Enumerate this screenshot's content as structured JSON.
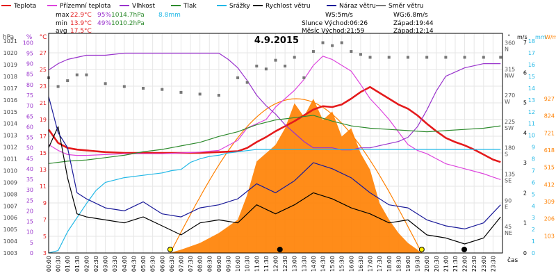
{
  "title": "4.9.2015",
  "legend": [
    {
      "label": "Teplota",
      "color": "#e41a1c"
    },
    {
      "label": "Přízemní teplota",
      "color": "#dd44dd"
    },
    {
      "label": "Vlhkost",
      "color": "#9933cc"
    },
    {
      "label": "Tlak",
      "color": "#2e8b2e"
    },
    {
      "label": "Srážky",
      "color": "#22b8e6"
    },
    {
      "label": "Rychlost větru",
      "color": "#000000"
    },
    {
      "label": "Náraz větru",
      "color": "#1a1a99"
    },
    {
      "label": "Směr větru",
      "color": "#777777"
    }
  ],
  "stats": {
    "max": {
      "label": "max",
      "temp": "22.9°C",
      "hum": "95%",
      "press": "1014.7hPa",
      "rain": "8.8mm"
    },
    "min": {
      "label": "min",
      "temp": "13.9°C",
      "hum": "49%",
      "press": "1010.2hPa"
    },
    "avg": {
      "label": "avg",
      "temp": "17.5°C"
    },
    "ws": "WS:5m/s",
    "wg": "WG:6.8m/s",
    "sun": "Slunce Východ:06:26",
    "sun_set": "Západ:19:44",
    "moon": "Měsíc  Východ:21:59",
    "moon_set": "Západ:12:14"
  },
  "axes": {
    "hpa": {
      "title": "hPa",
      "color": "#444444",
      "ticks": [
        "1021",
        "1020",
        "1019",
        "1018",
        "1017",
        "1016",
        "1015",
        "1014",
        "1013",
        "1012",
        "1011",
        "1010",
        "1009",
        "1008",
        "1007",
        "1006",
        "1005",
        "1004",
        "1003"
      ]
    },
    "pct": {
      "title": "%",
      "color": "#9933cc",
      "ticks": [
        "100",
        "95",
        "90",
        "85",
        "80",
        "75",
        "70",
        "65",
        "60",
        "55",
        "50",
        "45",
        "40",
        "35",
        "30",
        "25",
        "20",
        "15",
        "10",
        "5",
        "0"
      ]
    },
    "degc": {
      "title": "°C",
      "color": "#e41a1c",
      "ticks": [
        "27",
        "25",
        "23",
        "21",
        "19",
        "17",
        "15",
        "13",
        "11",
        "9",
        "7",
        "5",
        "3"
      ]
    },
    "dir": {
      "title": "°",
      "color": "#555555",
      "ticks": [
        {
          "v": "360",
          "l": "N"
        },
        {
          "v": "315",
          "l": "NW"
        },
        {
          "v": "270",
          "l": "W"
        },
        {
          "v": "225",
          "l": "SW"
        },
        {
          "v": "180",
          "l": "S"
        },
        {
          "v": "135",
          "l": "SE"
        },
        {
          "v": "90",
          "l": "E"
        },
        {
          "v": "45",
          "l": "NE"
        }
      ]
    },
    "ms": {
      "title": "m/s",
      "color": "#000000",
      "ticks": [
        "7",
        "6",
        "5",
        "4",
        "3",
        "2",
        "1",
        "0"
      ]
    },
    "mm": {
      "title": "mm",
      "color": "#22b8e6",
      "ticks": [
        "18",
        "17",
        "16",
        "15",
        "14",
        "13",
        "12",
        "11",
        "10",
        "9",
        "8",
        "7",
        "6",
        "5",
        "4",
        "3",
        "2",
        "1",
        "0"
      ]
    },
    "wm2": {
      "title": "W/m2",
      "color": "#ff8000",
      "ticks": [
        "927",
        "824",
        "721",
        "618",
        "515",
        "412",
        "309",
        "206",
        "103"
      ]
    },
    "x_ticks": [
      "00:00",
      "00:30",
      "01:00",
      "01:30",
      "02:00",
      "02:30",
      "03:00",
      "03:30",
      "04:00",
      "04:30",
      "05:00",
      "05:30",
      "06:00",
      "06:30",
      "07:00",
      "07:30",
      "08:00",
      "08:30",
      "09:00",
      "09:30",
      "10:00",
      "10:30",
      "11:00",
      "11:30",
      "12:00",
      "12:30",
      "13:00",
      "13:30",
      "14:00",
      "14:30",
      "15:00",
      "15:30",
      "16:00",
      "16:30",
      "17:00",
      "17:30",
      "18:00",
      "18:30",
      "19:00",
      "19:30",
      "20:00",
      "20:30",
      "21:00",
      "21:30",
      "22:00",
      "22:30",
      "23:00",
      "23:30"
    ],
    "x_label": "čas"
  },
  "chart_data": {
    "type": "line",
    "title": "4.9.2015",
    "x_unit": "hour",
    "series": [
      {
        "name": "Teplota",
        "color": "#e41a1c",
        "unit": "°C",
        "x": [
          0,
          0.5,
          1,
          1.5,
          2,
          3,
          4,
          5,
          6,
          7,
          8,
          9,
          10,
          10.5,
          11,
          11.5,
          12,
          12.5,
          13,
          13.5,
          14,
          14.5,
          15,
          15.5,
          16,
          16.5,
          17,
          17.5,
          18,
          18.5,
          19,
          19.5,
          20,
          20.5,
          21,
          21.5,
          22,
          22.5,
          23,
          23.5,
          23.9
        ],
        "y": [
          17.8,
          16.2,
          15.6,
          15.4,
          15.3,
          15.1,
          15.0,
          15.0,
          15.0,
          15.0,
          15.0,
          15.1,
          15.2,
          15.6,
          16.3,
          16.9,
          17.6,
          18.2,
          18.8,
          19.5,
          20.2,
          20.6,
          20.5,
          20.8,
          21.5,
          22.3,
          22.9,
          22.2,
          21.5,
          20.8,
          20.3,
          19.5,
          18.5,
          17.6,
          16.8,
          16.3,
          15.9,
          15.4,
          14.8,
          14.2,
          13.9
        ]
      },
      {
        "name": "Přízemní teplota",
        "color": "#dd44dd",
        "unit": "°C",
        "x": [
          0,
          0.5,
          1,
          1.5,
          2,
          3,
          4,
          5,
          6,
          7,
          8,
          9,
          10,
          10.5,
          11,
          11.5,
          12,
          12.5,
          13,
          13.5,
          14,
          14.5,
          15,
          15.5,
          16,
          16.5,
          17,
          17.5,
          18,
          18.5,
          19,
          19.5,
          20,
          20.5,
          21,
          22,
          23,
          23.5,
          23.9
        ],
        "y": [
          16.0,
          15.3,
          14.8,
          14.7,
          14.7,
          14.8,
          14.9,
          14.9,
          14.9,
          15.0,
          15.1,
          15.3,
          16.5,
          18.0,
          18.5,
          19.0,
          20.5,
          21.5,
          22.5,
          23.8,
          25.5,
          26.6,
          26.2,
          25.5,
          24.8,
          23.2,
          21.5,
          20.3,
          19.0,
          17.5,
          16.0,
          15.3,
          14.9,
          14.3,
          13.7,
          13.1,
          12.5,
          12.1,
          11.8
        ]
      },
      {
        "name": "Vlhkost",
        "color": "#9933cc",
        "unit": "%",
        "x": [
          0,
          0.5,
          1,
          1.5,
          2,
          3,
          4,
          5,
          6,
          7,
          8,
          9,
          9.5,
          10,
          10.5,
          11,
          11.5,
          12,
          12.5,
          13,
          13.5,
          14,
          14.5,
          15,
          15.5,
          16,
          16.5,
          17,
          17.5,
          18,
          18.5,
          19,
          19.5,
          20,
          20.5,
          21,
          22,
          23,
          23.9
        ],
        "y": [
          87,
          90,
          92,
          93,
          94,
          94,
          95,
          95,
          95,
          95,
          95,
          95,
          92,
          88,
          82,
          75,
          70,
          66,
          61,
          57,
          53,
          50,
          50,
          50,
          49,
          49,
          50,
          50,
          51,
          52,
          53,
          55,
          60,
          68,
          77,
          84,
          88,
          90,
          90
        ]
      },
      {
        "name": "Tlak",
        "color": "#2e8b2e",
        "unit": "hPa",
        "x": [
          0,
          1,
          2,
          3,
          4,
          5,
          6,
          7,
          8,
          9,
          10,
          11,
          12,
          13,
          14,
          15,
          16,
          17,
          18,
          19,
          20,
          21,
          22,
          23,
          23.9
        ],
        "y": [
          1010.6,
          1010.8,
          1010.9,
          1011.1,
          1011.3,
          1011.6,
          1011.8,
          1012.1,
          1012.4,
          1012.9,
          1013.3,
          1013.9,
          1014.3,
          1014.5,
          1014.7,
          1014.2,
          1013.8,
          1013.6,
          1013.5,
          1013.4,
          1013.3,
          1013.4,
          1013.5,
          1013.6,
          1013.8
        ]
      },
      {
        "name": "Srážky",
        "color": "#22b8e6",
        "unit": "mm",
        "x": [
          0,
          0.5,
          1,
          1.5,
          2,
          2.5,
          3,
          4,
          5,
          6,
          6.5,
          7,
          7.5,
          8,
          8.5,
          9,
          9.5,
          10,
          10.5,
          11,
          11.5,
          12,
          23.9
        ],
        "y": [
          0,
          0.2,
          1.8,
          3.0,
          4.2,
          5.3,
          6.0,
          6.4,
          6.6,
          6.8,
          7.0,
          7.1,
          7.7,
          8.0,
          8.2,
          8.3,
          8.5,
          8.6,
          8.7,
          8.8,
          8.8,
          8.8,
          8.8
        ]
      },
      {
        "name": "Rychlost větru",
        "color": "#000000",
        "unit": "m/s",
        "x": [
          0,
          0.5,
          1,
          1.5,
          2,
          3,
          4,
          5,
          6,
          7,
          8,
          9,
          10,
          11,
          12,
          13,
          14,
          15,
          16,
          17,
          18,
          19,
          20,
          21,
          22,
          23,
          23.9
        ],
        "y": [
          3.5,
          4.2,
          2.5,
          1.3,
          1.2,
          1.1,
          1.0,
          1.2,
          0.9,
          0.6,
          1.0,
          1.1,
          1.0,
          1.6,
          1.3,
          1.6,
          2.0,
          1.8,
          1.5,
          1.3,
          1.0,
          1.1,
          0.6,
          0.5,
          0.3,
          0.5,
          1.2
        ]
      },
      {
        "name": "Náraz větru",
        "color": "#1a1a99",
        "unit": "m/s",
        "x": [
          0,
          0.5,
          1,
          1.5,
          2,
          3,
          4,
          5,
          6,
          7,
          8,
          9,
          10,
          11,
          12,
          13,
          14,
          15,
          16,
          17,
          18,
          19,
          20,
          21,
          22,
          23,
          23.9
        ],
        "y": [
          5.2,
          4.0,
          3.5,
          2.0,
          1.8,
          1.5,
          1.4,
          1.7,
          1.3,
          1.2,
          1.5,
          1.6,
          1.8,
          2.3,
          2.0,
          2.4,
          3.0,
          2.8,
          2.5,
          2.0,
          1.6,
          1.5,
          1.1,
          0.9,
          0.8,
          1.0,
          1.6
        ]
      },
      {
        "name": "Směr větru",
        "color": "#777777",
        "unit": "°",
        "x": [
          0,
          0.5,
          1,
          1.5,
          2,
          3,
          4,
          5,
          6,
          7,
          8,
          9,
          10,
          10.5,
          11,
          11.5,
          12,
          12.5,
          13,
          13.5,
          14,
          14.5,
          15,
          15.5,
          16,
          16.5,
          17,
          18,
          19,
          20,
          21,
          22,
          23,
          23.9
        ],
        "y": [
          300,
          285,
          295,
          305,
          305,
          290,
          285,
          282,
          280,
          275,
          272,
          270,
          300,
          292,
          320,
          315,
          330,
          320,
          335,
          300,
          345,
          360,
          355,
          360,
          345,
          340,
          335,
          335,
          335,
          335,
          335,
          335,
          335,
          335
        ]
      }
    ],
    "solar_radiation": {
      "name": "Sluneční záření",
      "color": "#ff8000",
      "unit": "W/m2",
      "x": [
        6.4,
        7,
        8,
        9,
        10,
        10.5,
        11,
        11.5,
        12,
        12.5,
        13,
        13.5,
        14,
        14.5,
        15,
        15.5,
        16,
        16.5,
        17,
        17.5,
        18,
        18.5,
        19,
        19.5,
        19.7
      ],
      "y": [
        0,
        20,
        60,
        120,
        200,
        350,
        550,
        600,
        650,
        750,
        900,
        820,
        927,
        800,
        850,
        700,
        750,
        600,
        500,
        300,
        200,
        120,
        60,
        20,
        0
      ]
    },
    "theoretical_radiation_max": 927,
    "events": [
      {
        "type": "sunrise",
        "x": 6.43
      },
      {
        "type": "moonset",
        "x": 12.23
      },
      {
        "type": "sunset",
        "x": 19.73
      },
      {
        "type": "moonrise",
        "x": 21.98
      }
    ]
  }
}
